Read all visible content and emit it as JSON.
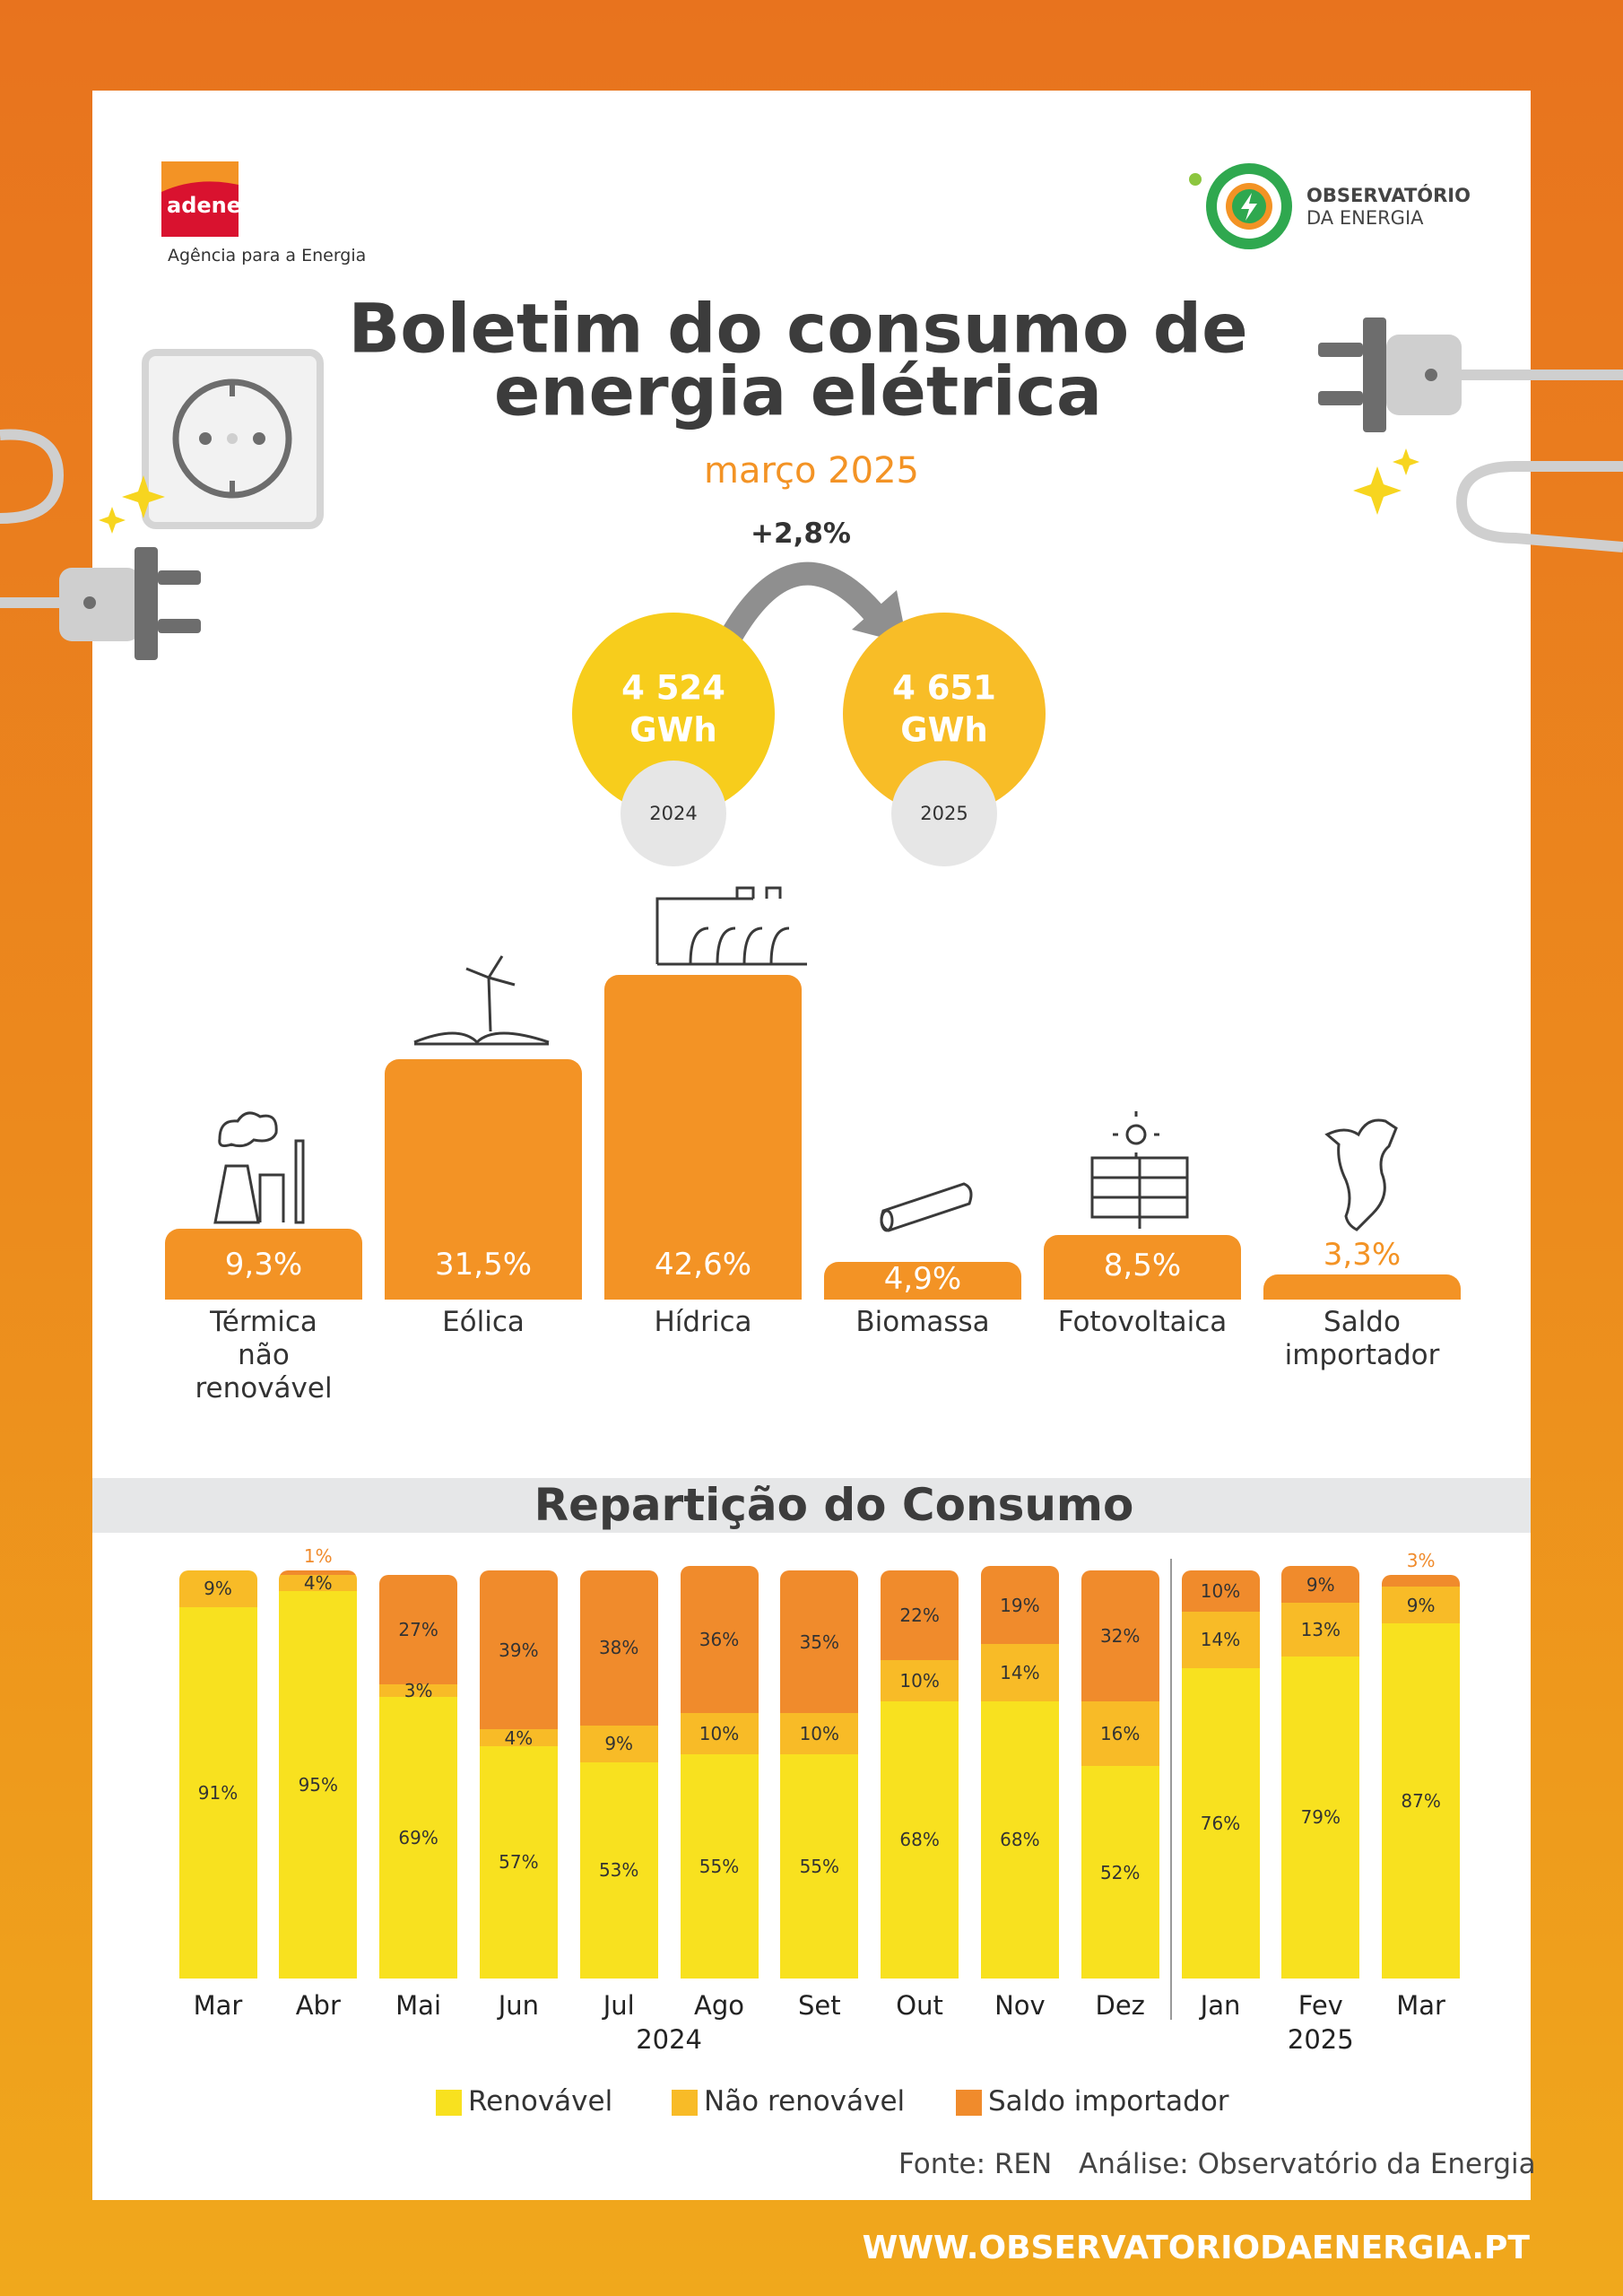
{
  "header": {
    "brand": "adene",
    "brand_tagline": "Agência para a Energia",
    "partner_line1": "OBSERVATÓRIO",
    "partner_line2": "DA ENERGIA",
    "title_line1": "Boletim do consumo de",
    "title_line2": "energia elétrica",
    "subtitle": "março 2025"
  },
  "comparison": {
    "change": "+2,8%",
    "items": [
      {
        "value": "4 524",
        "unit": "GWh",
        "year": "2024"
      },
      {
        "value": "4 651",
        "unit": "GWh",
        "year": "2025"
      }
    ]
  },
  "chart_data": [
    {
      "type": "bar",
      "categories": [
        "Térmica não renovável",
        "Eólica",
        "Hídrica",
        "Biomassa",
        "Fotovoltaica",
        "Saldo importador"
      ],
      "values": [
        9.3,
        31.5,
        42.6,
        4.9,
        8.5,
        3.3
      ],
      "value_labels": [
        "9,3%",
        "31,5%",
        "42,6%",
        "4,9%",
        "8,5%",
        "3,3%"
      ],
      "color": "#f39325"
    },
    {
      "type": "stacked_bar",
      "title": "Repartição do Consumo",
      "categories": [
        "Mar",
        "Abr",
        "Mai",
        "Jun",
        "Jul",
        "Ago",
        "Set",
        "Out",
        "Nov",
        "Dez",
        "Jan",
        "Fev",
        "Mar"
      ],
      "year_labels": [
        "2024",
        "2025"
      ],
      "ylim": [
        0,
        100
      ],
      "series": [
        {
          "name": "Renovável",
          "color": "#f8e11f",
          "values": [
            91,
            95,
            69,
            57,
            53,
            55,
            55,
            68,
            68,
            52,
            76,
            79,
            87
          ],
          "value_labels": [
            "91%",
            "95%",
            "69%",
            "57%",
            "53%",
            "55%",
            "55%",
            "68%",
            "68%",
            "52%",
            "76%",
            "79%",
            "87%"
          ]
        },
        {
          "name": "Não renovável",
          "color": "#f8bb27",
          "values": [
            9,
            4,
            3,
            4,
            9,
            10,
            10,
            10,
            14,
            16,
            14,
            13,
            9
          ],
          "value_labels": [
            "9%",
            "4%",
            "3%",
            "4%",
            "9%",
            "10%",
            "10%",
            "10%",
            "14%",
            "16%",
            "14%",
            "13%",
            "9%"
          ]
        },
        {
          "name": "Saldo importador",
          "color": "#f08b2c",
          "values": [
            null,
            1,
            27,
            39,
            38,
            36,
            35,
            22,
            19,
            32,
            10,
            9,
            3
          ],
          "value_labels": [
            null,
            "1%",
            "27%",
            "39%",
            "38%",
            "36%",
            "35%",
            "22%",
            "19%",
            "32%",
            "10%",
            "9%",
            "3%"
          ]
        }
      ]
    }
  ],
  "footer": {
    "source": "Fonte: REN",
    "analysis": "Análise: Observatório da Energia",
    "url": "WWW.OBSERVATORIODAENERGIA.PT"
  }
}
